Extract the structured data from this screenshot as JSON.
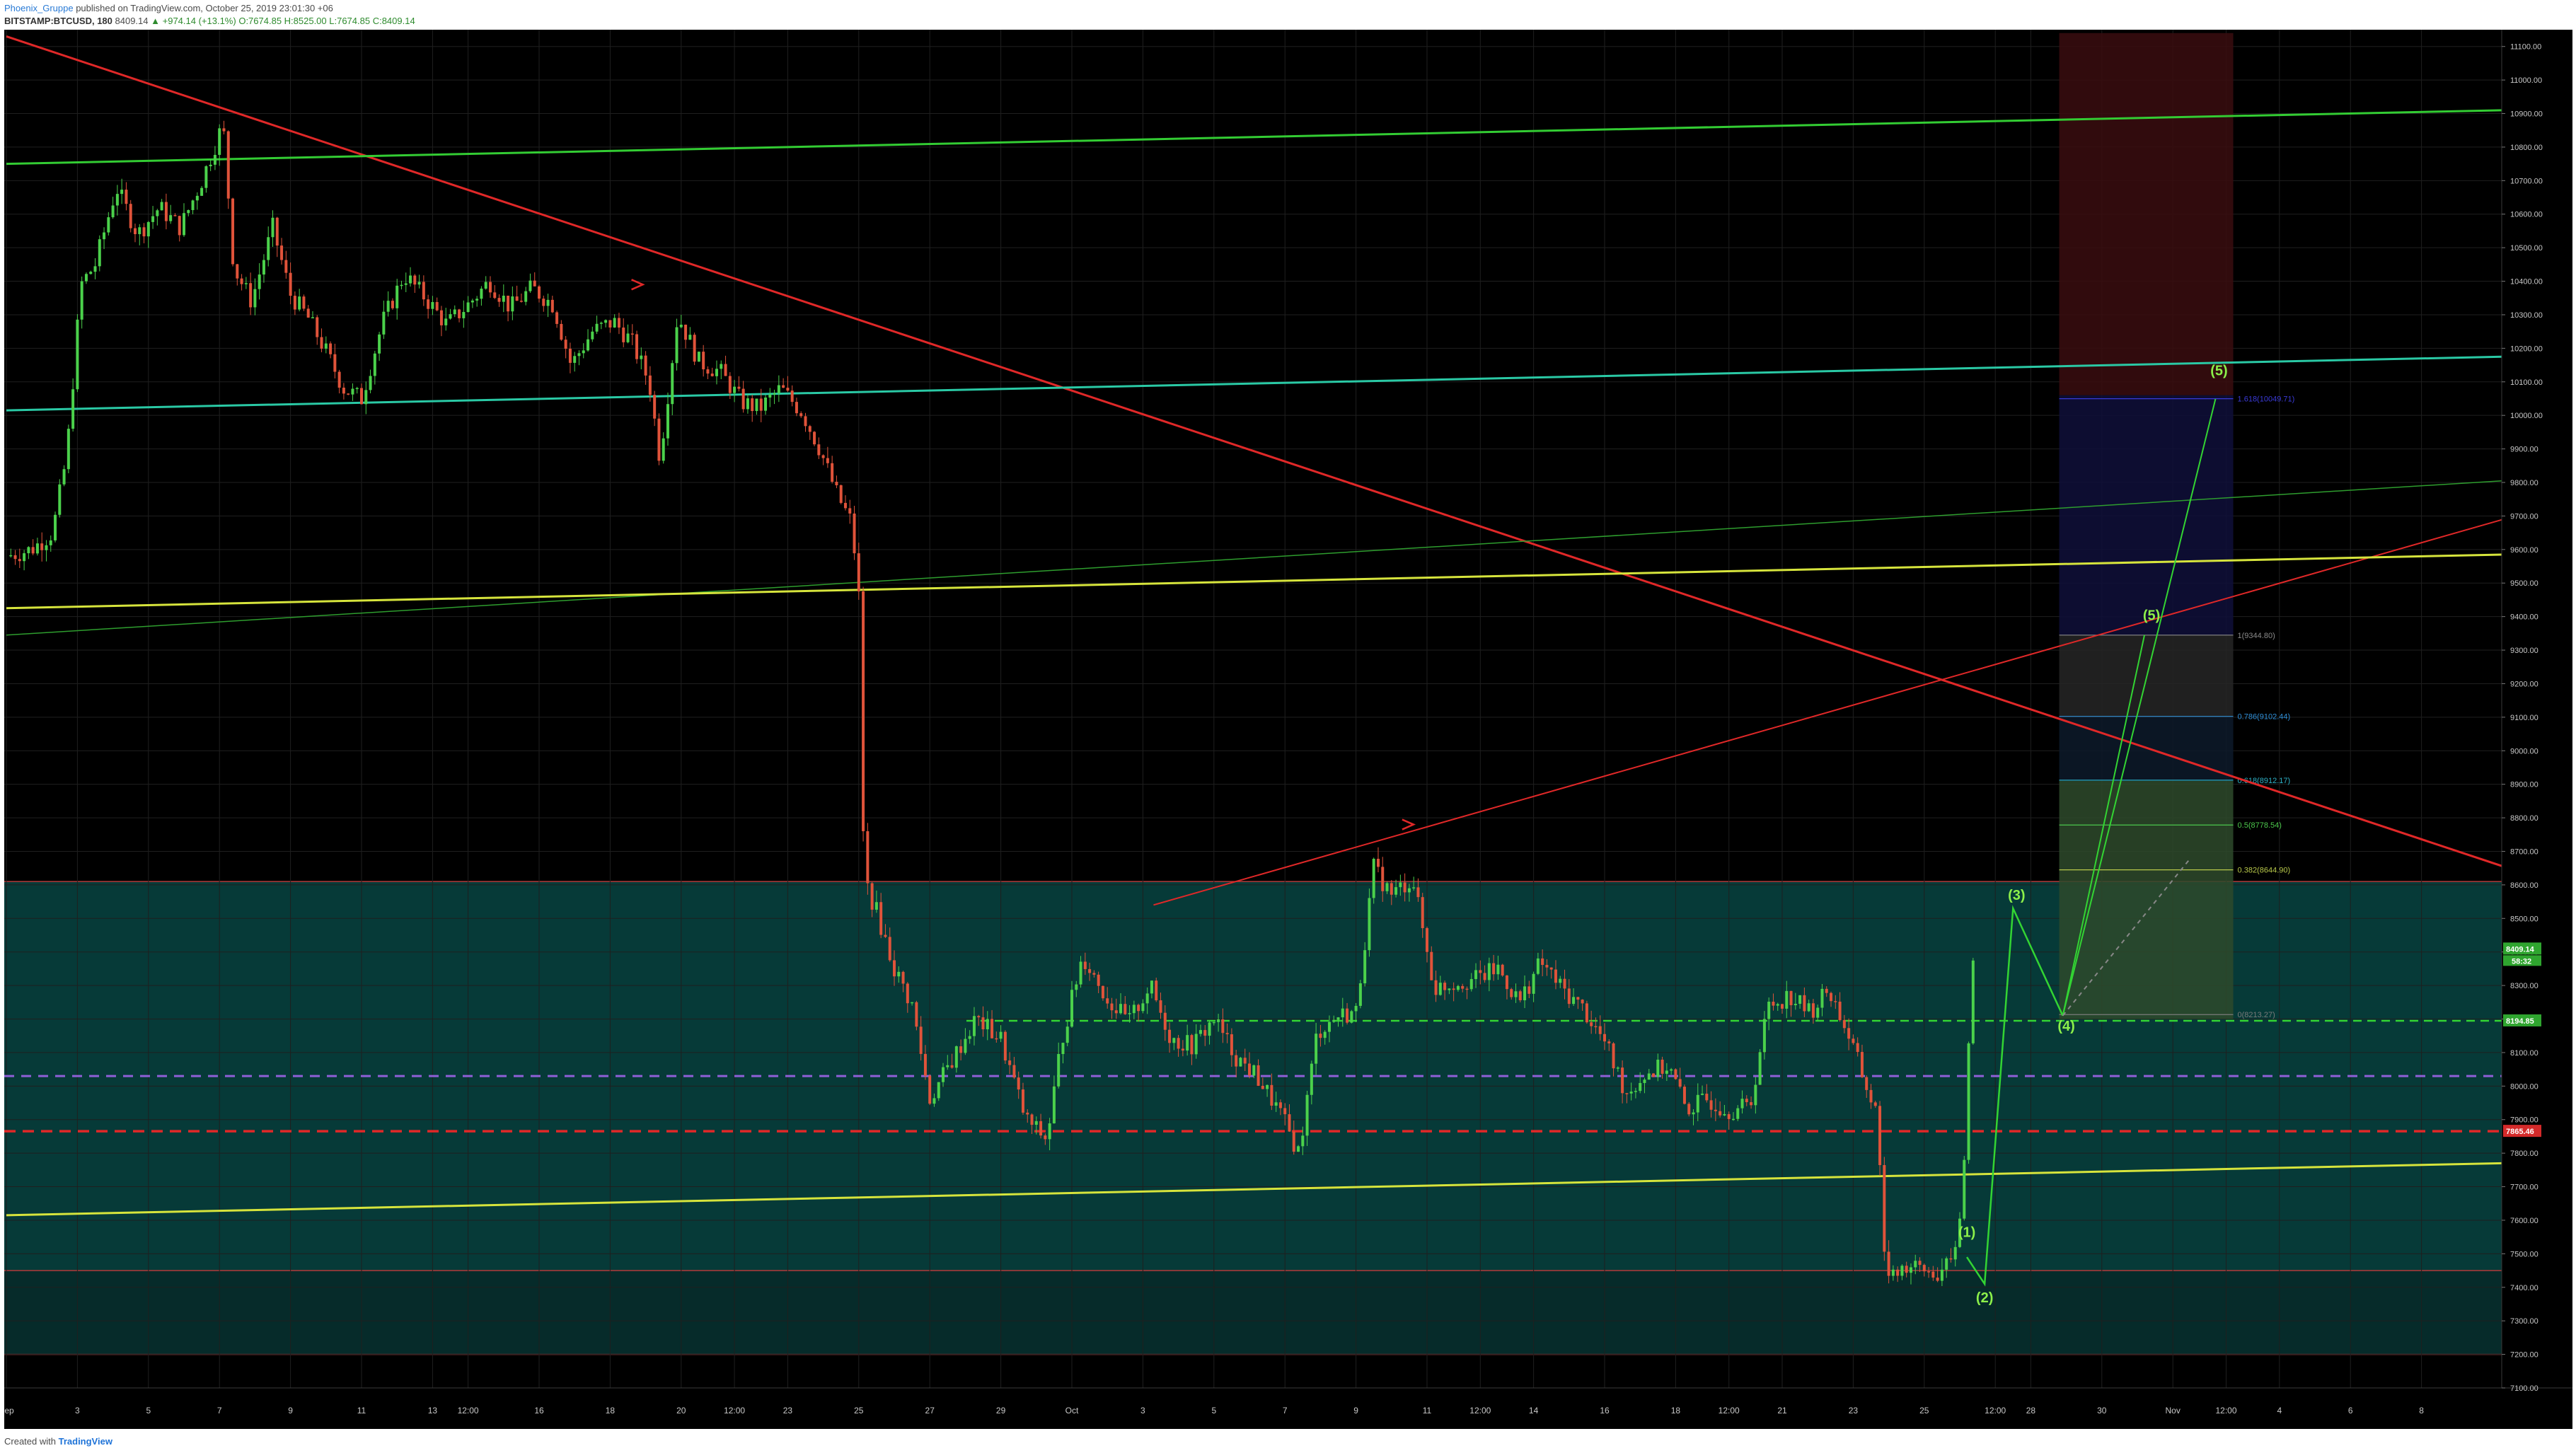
{
  "header": {
    "author": "Phoenix_Gruppe",
    "published": "published on TradingView.com, October 25, 2019 23:01:30 +06",
    "symbol": "BITSTAMP:BTCUSD, 180",
    "last": "8409.14",
    "change": "▲ +974.14 (+13.1%)",
    "ohlc": "O:7674.85 H:8525.00 L:7674.85 C:8409.14"
  },
  "footer": {
    "prefix": "Created with",
    "brand": "TradingView"
  },
  "chart_data": {
    "type": "candlestick",
    "x_range_days": [
      0,
      39.5
    ],
    "x_origin_label": "Sep 1 2019",
    "ylim": [
      7100,
      11150
    ],
    "y_axis_position": "right",
    "grid": true,
    "y_ticks": [
      "11100.00",
      "11000.00",
      "10900.00",
      "10800.00",
      "10700.00",
      "10600.00",
      "10500.00",
      "10400.00",
      "10300.00",
      "10200.00",
      "10100.00",
      "10000.00",
      "9900.00",
      "9800.00",
      "9700.00",
      "9600.00",
      "9500.00",
      "9400.00",
      "9300.00",
      "9200.00",
      "9100.00",
      "9000.00",
      "8900.00",
      "8800.00",
      "8700.00",
      "8600.00",
      "8500.00",
      "8400.00",
      "8300.00",
      "8200.00",
      "8100.00",
      "8000.00",
      "7900.00",
      "7800.00",
      "7700.00",
      "7600.00",
      "7500.00",
      "7400.00",
      "7300.00",
      "7200.00",
      "7100.00"
    ],
    "x_ticks": [
      {
        "day": 0,
        "label": "Sep"
      },
      {
        "day": 2,
        "label": "3"
      },
      {
        "day": 4,
        "label": "5"
      },
      {
        "day": 6,
        "label": "7"
      },
      {
        "day": 8,
        "label": "9"
      },
      {
        "day": 10,
        "label": "11"
      },
      {
        "day": 12,
        "label": "13"
      },
      {
        "day": 13,
        "label": "12:00"
      },
      {
        "day": 15,
        "label": "16"
      },
      {
        "day": 17,
        "label": "18"
      },
      {
        "day": 19,
        "label": "20"
      },
      {
        "day": 20.5,
        "label": "12:00"
      },
      {
        "day": 22,
        "label": "23"
      },
      {
        "day": 24,
        "label": "25"
      },
      {
        "day": 26,
        "label": "27"
      },
      {
        "day": 28,
        "label": "29"
      },
      {
        "day": 30,
        "label": "Oct"
      },
      {
        "day": 32,
        "label": "3"
      },
      {
        "day": 34,
        "label": "5"
      },
      {
        "day": 36,
        "label": "7"
      },
      {
        "day": 38,
        "label": "9"
      },
      {
        "day": 40,
        "label": "11"
      },
      {
        "day": 41.5,
        "label": "12:00"
      },
      {
        "day": 43,
        "label": "14"
      },
      {
        "day": 45,
        "label": "16"
      },
      {
        "day": 47,
        "label": "18"
      },
      {
        "day": 48.5,
        "label": "12:00"
      },
      {
        "day": 50,
        "label": "21"
      },
      {
        "day": 52,
        "label": "23"
      },
      {
        "day": 54,
        "label": "25"
      },
      {
        "day": 56,
        "label": "12:00"
      },
      {
        "day": 57,
        "label": "28"
      },
      {
        "day": 59,
        "label": "30"
      },
      {
        "day": 61,
        "label": "Nov"
      },
      {
        "day": 62.5,
        "label": "12:00"
      },
      {
        "day": 64,
        "label": "4"
      },
      {
        "day": 66,
        "label": "6"
      },
      {
        "day": 68,
        "label": "8"
      }
    ],
    "price_path": [
      [
        0,
        9580
      ],
      [
        0.7,
        9600
      ],
      [
        1.3,
        9650
      ],
      [
        1.7,
        9880
      ],
      [
        2.1,
        10390
      ],
      [
        2.5,
        10450
      ],
      [
        3.1,
        10680
      ],
      [
        3.7,
        10540
      ],
      [
        4.3,
        10620
      ],
      [
        4.9,
        10560
      ],
      [
        5.5,
        10700
      ],
      [
        6.1,
        10870
      ],
      [
        6.4,
        10440
      ],
      [
        6.9,
        10340
      ],
      [
        7.5,
        10560
      ],
      [
        8.0,
        10360
      ],
      [
        8.5,
        10290
      ],
      [
        9.0,
        10190
      ],
      [
        9.5,
        10080
      ],
      [
        10.0,
        10050
      ],
      [
        10.6,
        10280
      ],
      [
        11.2,
        10420
      ],
      [
        11.8,
        10350
      ],
      [
        12.4,
        10270
      ],
      [
        13.0,
        10330
      ],
      [
        13.6,
        10400
      ],
      [
        14.2,
        10320
      ],
      [
        14.8,
        10380
      ],
      [
        15.4,
        10330
      ],
      [
        15.9,
        10150
      ],
      [
        16.5,
        10250
      ],
      [
        17.1,
        10280
      ],
      [
        17.6,
        10220
      ],
      [
        18.1,
        10100
      ],
      [
        18.4,
        9870
      ],
      [
        18.9,
        10300
      ],
      [
        19.5,
        10160
      ],
      [
        20.1,
        10130
      ],
      [
        20.7,
        10040
      ],
      [
        21.2,
        10020
      ],
      [
        21.8,
        10080
      ],
      [
        22.4,
        10010
      ],
      [
        22.9,
        9900
      ],
      [
        23.4,
        9760
      ],
      [
        23.8,
        9680
      ],
      [
        24.0,
        9460
      ],
      [
        24.15,
        8620
      ],
      [
        24.5,
        8520
      ],
      [
        25.0,
        8350
      ],
      [
        25.5,
        8240
      ],
      [
        26.0,
        7960
      ],
      [
        26.7,
        8090
      ],
      [
        27.3,
        8200
      ],
      [
        28.0,
        8140
      ],
      [
        28.7,
        7900
      ],
      [
        29.3,
        7840
      ],
      [
        29.7,
        8130
      ],
      [
        30.3,
        8390
      ],
      [
        31.0,
        8260
      ],
      [
        31.6,
        8190
      ],
      [
        32.2,
        8300
      ],
      [
        32.8,
        8140
      ],
      [
        33.4,
        8120
      ],
      [
        34.0,
        8200
      ],
      [
        34.6,
        8090
      ],
      [
        35.2,
        8030
      ],
      [
        35.8,
        7930
      ],
      [
        36.4,
        7800
      ],
      [
        36.9,
        8160
      ],
      [
        37.5,
        8210
      ],
      [
        38.0,
        8220
      ],
      [
        38.5,
        8650
      ],
      [
        39.0,
        8570
      ],
      [
        39.6,
        8620
      ],
      [
        40.2,
        8290
      ],
      [
        40.8,
        8310
      ],
      [
        41.4,
        8320
      ],
      [
        42.0,
        8350
      ],
      [
        42.6,
        8250
      ],
      [
        43.2,
        8370
      ],
      [
        43.8,
        8290
      ],
      [
        44.4,
        8230
      ],
      [
        45.0,
        8130
      ],
      [
        45.6,
        7980
      ],
      [
        46.2,
        8040
      ],
      [
        46.8,
        8060
      ],
      [
        47.3,
        7930
      ],
      [
        47.9,
        7960
      ],
      [
        48.5,
        7930
      ],
      [
        49.1,
        7940
      ],
      [
        49.6,
        8240
      ],
      [
        50.2,
        8270
      ],
      [
        50.8,
        8220
      ],
      [
        51.3,
        8290
      ],
      [
        51.8,
        8170
      ],
      [
        52.3,
        8020
      ],
      [
        52.7,
        7900
      ],
      [
        52.9,
        7450
      ],
      [
        53.4,
        7460
      ],
      [
        53.9,
        7450
      ],
      [
        54.4,
        7440
      ],
      [
        54.8,
        7470
      ],
      [
        55.1,
        7700
      ],
      [
        55.3,
        8270
      ],
      [
        55.4,
        8409.14
      ]
    ],
    "current_price": "8409.14",
    "countdown": "58:32",
    "dashed_level_price": "8194.85",
    "dashed_level_value": 8194.85,
    "red_dashed_level": 7865.46,
    "red_dashed_label": "7865.46",
    "purple_dashed_level": 8030,
    "zones": [
      {
        "from": 7450,
        "to": 8610,
        "color": "#063a38"
      },
      {
        "from": 7200,
        "to": 7450,
        "color": "#062b2a"
      }
    ],
    "target_box": {
      "day_from": 57.8,
      "day_to": 62.7,
      "red": [
        10060,
        11140
      ],
      "blue": [
        9345,
        10060
      ],
      "gray": [
        9100,
        9345
      ],
      "navy": [
        8910,
        9100
      ],
      "green": [
        8200,
        8910
      ]
    },
    "fib_levels": [
      {
        "label": "1.618(10049.71)",
        "value": 10049.71,
        "color": "#3a3ad8"
      },
      {
        "label": "1(9344.80)",
        "value": 9344.8,
        "color": "#8a8a8a"
      },
      {
        "label": "0.786(9102.44)",
        "value": 9102.44,
        "color": "#2f8fd8"
      },
      {
        "label": "0.618(8912.17)",
        "value": 8912.17,
        "color": "#2db1c6"
      },
      {
        "label": "0.5(8778.54)",
        "value": 8778.54,
        "color": "#4cc74c"
      },
      {
        "label": "0.382(8644.90)",
        "value": 8644.9,
        "color": "#b8c84a"
      },
      {
        "label": "0(8213.27)",
        "value": 8213.27,
        "color": "#7a7a7a"
      }
    ],
    "trendlines": [
      {
        "name": "downtrend",
        "color": "#e02828",
        "width": 3,
        "p1": [
          0,
          11130
        ],
        "p2": [
          70.3,
          8655
        ]
      },
      {
        "name": "uptrend",
        "color": "#e02828",
        "width": 2,
        "p1": [
          32.3,
          8540
        ],
        "p2": [
          70.3,
          9690
        ]
      },
      {
        "name": "channel-top",
        "color": "#33cc33",
        "width": 3,
        "p1": [
          0,
          10750
        ],
        "p2": [
          70.3,
          10910
        ]
      },
      {
        "name": "channel-mid",
        "color": "#2ac9a5",
        "width": 3,
        "p1": [
          0,
          10015
        ],
        "p2": [
          70.3,
          10175
        ]
      },
      {
        "name": "channel-thin",
        "color": "#2e9d2e",
        "width": 1.5,
        "p1": [
          0,
          9345
        ],
        "p2": [
          70.3,
          9805
        ]
      },
      {
        "name": "channel-yellow",
        "color": "#d6e43c",
        "width": 3,
        "p1": [
          0,
          9425
        ],
        "p2": [
          70.3,
          9585
        ]
      },
      {
        "name": "channel-bottom",
        "color": "#d6e43c",
        "width": 3,
        "p1": [
          0,
          7615
        ],
        "p2": [
          70.3,
          7770
        ]
      }
    ],
    "wave_labels": [
      {
        "text": "(1)",
        "day": 55.2,
        "price": 7550
      },
      {
        "text": "(2)",
        "day": 55.7,
        "price": 7355
      },
      {
        "text": "(3)",
        "day": 56.6,
        "price": 8555
      },
      {
        "text": "(4)",
        "day": 58.0,
        "price": 8165
      },
      {
        "text": "(5)",
        "day": 60.4,
        "price": 9390
      },
      {
        "text": "(5)",
        "day": 62.3,
        "price": 10120
      }
    ],
    "wave_path": [
      [
        55.2,
        7490
      ],
      [
        55.7,
        7410
      ],
      [
        56.5,
        8530
      ],
      [
        57.9,
        8210
      ]
    ],
    "projection_paths": [
      [
        [
          57.9,
          8210
        ],
        [
          60.2,
          9345
        ]
      ],
      [
        [
          57.9,
          8210
        ],
        [
          62.2,
          10049
        ]
      ],
      [
        [
          57.9,
          8210
        ],
        [
          61.5,
          8680
        ]
      ]
    ],
    "arrows": [
      {
        "day": 17.8,
        "price": 10390,
        "color": "#e02828"
      },
      {
        "day": 39.5,
        "price": 8780,
        "color": "#e02828"
      }
    ]
  }
}
